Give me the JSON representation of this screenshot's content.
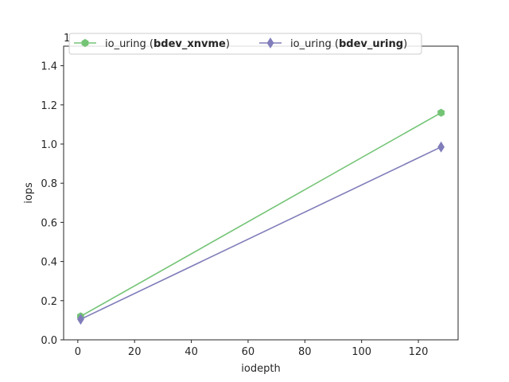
{
  "chart_data": {
    "type": "line",
    "title": "",
    "xlabel": "iodepth",
    "ylabel": "iops",
    "xlim": [
      -5,
      134
    ],
    "ylim": [
      0,
      1.5
    ],
    "x_ticks": [
      0,
      20,
      40,
      60,
      80,
      100,
      120
    ],
    "y_ticks": [
      0.0,
      0.2,
      0.4,
      0.6,
      0.8,
      1.0,
      1.2,
      1.4
    ],
    "y_tick_labels": [
      "0.0",
      "0.2",
      "0.4",
      "0.6",
      "0.8",
      "1.0",
      "1.2",
      "1.4"
    ],
    "x_tick_labels": [
      "0",
      "20",
      "40",
      "60",
      "80",
      "100",
      "120"
    ],
    "y_offset_label": "1",
    "grid": false,
    "legend_position": "top",
    "legend_columns": 2,
    "series": [
      {
        "name": "io_uring (bdev_xnvme)",
        "name_prefix": "io_uring (",
        "name_bold": "bdev_xnvme",
        "name_suffix": ")",
        "marker": "hexagon",
        "color": "#74c476",
        "x": [
          1,
          128
        ],
        "y": [
          0.12,
          1.16
        ]
      },
      {
        "name": "io_uring (bdev_uring)",
        "name_prefix": "io_uring (",
        "name_bold": "bdev_uring",
        "name_suffix": ")",
        "marker": "diamond",
        "color": "#807dba",
        "x": [
          1,
          128
        ],
        "y": [
          0.105,
          0.985
        ]
      }
    ]
  }
}
